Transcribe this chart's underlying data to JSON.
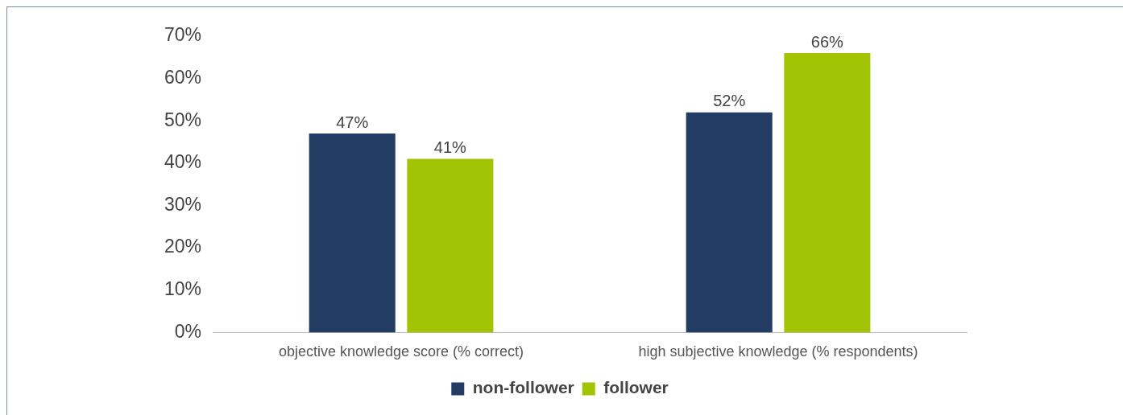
{
  "chart_data": {
    "type": "bar",
    "categories": [
      "objective knowledge score (% correct)",
      "high subjective knowledge (% respondents)"
    ],
    "series": [
      {
        "name": "non-follower",
        "color": "#223c63",
        "values": [
          47,
          52
        ],
        "value_labels": [
          "47%",
          "52%"
        ]
      },
      {
        "name": "follower",
        "color": "#a2c404",
        "values": [
          41,
          66
        ],
        "value_labels": [
          "41%",
          "66%"
        ]
      }
    ],
    "ylim": [
      0,
      70
    ],
    "yticks": [
      {
        "value": 0,
        "label": "0%"
      },
      {
        "value": 10,
        "label": "10%"
      },
      {
        "value": 20,
        "label": "20%"
      },
      {
        "value": 30,
        "label": "30%"
      },
      {
        "value": 40,
        "label": "40%"
      },
      {
        "value": 50,
        "label": "50%"
      },
      {
        "value": 60,
        "label": "60%"
      },
      {
        "value": 70,
        "label": "70%"
      }
    ],
    "grid": false,
    "legend": "bottom"
  }
}
